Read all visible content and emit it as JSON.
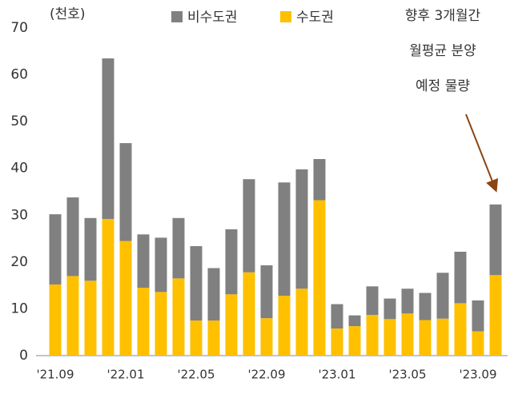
{
  "chart_data": {
    "type": "stacked_bar",
    "unit_label": "(천호)",
    "annotation": [
      "향후 3개월간",
      "월평균 분양",
      "예정 물량"
    ],
    "categories": [
      "'21.09",
      null,
      null,
      null,
      "'22.01",
      null,
      null,
      null,
      "'22.05",
      null,
      null,
      null,
      "'22.09",
      null,
      null,
      null,
      "'23.01",
      null,
      null,
      null,
      "'23.05",
      null,
      null,
      null,
      "'23.09",
      null
    ],
    "series": [
      {
        "name": "비수도권",
        "color": "#808080",
        "values": [
          15.0,
          16.8,
          13.4,
          34.3,
          20.9,
          11.4,
          11.6,
          12.9,
          15.9,
          11.2,
          13.9,
          19.9,
          11.3,
          24.2,
          25.5,
          8.8,
          5.2,
          2.3,
          6.1,
          4.4,
          5.3,
          5.8,
          9.8,
          11.0,
          6.6,
          15.1
        ]
      },
      {
        "name": "수도권",
        "color": "#ffc000",
        "values": [
          15.2,
          17.0,
          16.0,
          29.2,
          24.5,
          14.5,
          13.6,
          16.5,
          7.5,
          7.5,
          13.1,
          17.8,
          8.0,
          12.8,
          14.3,
          33.2,
          5.8,
          6.3,
          8.7,
          7.8,
          9.0,
          7.6,
          7.9,
          11.2,
          5.2,
          17.2
        ]
      }
    ],
    "ylim": [
      0,
      70
    ],
    "yticks": [
      0,
      10,
      20,
      30,
      40,
      50,
      60,
      70
    ],
    "grid": false
  }
}
